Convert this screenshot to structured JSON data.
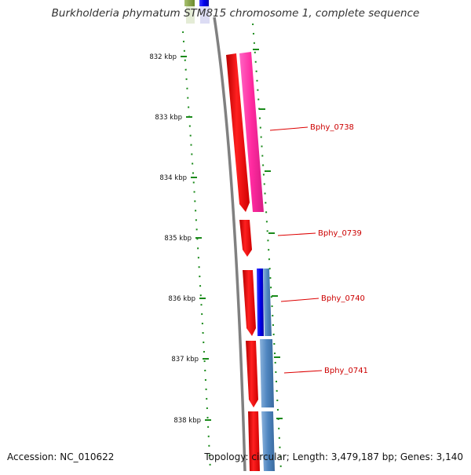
{
  "title": "Burkholderia phymatum STM815 chromosome 1, complete sequence",
  "footer": {
    "accession": "Accession: NC_010622",
    "summary": "Topology: circular; Length: 3,479,187 bp; Genes: 3,140"
  },
  "ticks": [
    {
      "label": "832 kbp",
      "kbp": 832
    },
    {
      "label": "833 kbp",
      "kbp": 833
    },
    {
      "label": "834 kbp",
      "kbp": 834
    },
    {
      "label": "835 kbp",
      "kbp": 835
    },
    {
      "label": "836 kbp",
      "kbp": 836
    },
    {
      "label": "837 kbp",
      "kbp": 837
    },
    {
      "label": "838 kbp",
      "kbp": 838
    }
  ],
  "gene_labels": [
    {
      "label": "Bphy_0738"
    },
    {
      "label": "Bphy_0739"
    },
    {
      "label": "Bphy_0740"
    },
    {
      "label": "Bphy_0741"
    }
  ],
  "colors": {
    "backbone": "#808080",
    "cds": "#ff1010",
    "gene_pink": "#ff2aa0",
    "gene_blue": "#0000ee",
    "gene_steelblue": "#4f86c0",
    "gene_olive": "#7a9a3a",
    "tick": "#1a8a1a",
    "label_line": "#dd0000",
    "label_text": "#cc0000"
  }
}
